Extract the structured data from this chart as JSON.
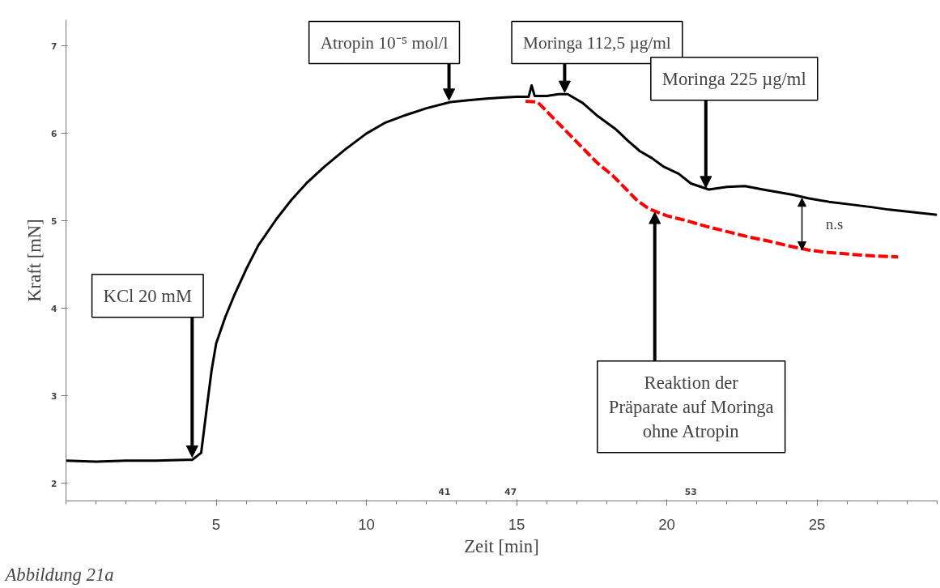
{
  "chart_data": {
    "type": "line",
    "xlabel": "Zeit [min]",
    "ylabel": "Kraft [mN]",
    "xlim": [
      0,
      29
    ],
    "ylim": [
      1.8,
      7.3
    ],
    "xticks": [
      5,
      10,
      15,
      20,
      25
    ],
    "yticks": [
      2,
      3,
      4,
      5,
      6,
      7
    ],
    "grid": false,
    "marker": "none",
    "series": [
      {
        "color": "#000000",
        "line_style": "solid",
        "x": [
          0,
          1,
          2,
          3,
          4,
          4.2,
          4.5,
          4.7,
          4.85,
          5,
          5.3,
          5.6,
          6,
          6.4,
          7,
          7.5,
          8,
          8.6,
          9.3,
          10,
          10.6,
          11.3,
          12,
          12.8,
          13.4,
          14,
          14.5,
          15,
          15.4,
          15.5,
          15.6,
          16,
          16.4,
          16.7,
          17.2,
          17.7,
          18.3,
          18.7,
          19.1,
          19.5,
          19.9,
          20.4,
          20.8,
          21.4,
          22,
          22.6,
          23.2,
          23.7,
          24.2,
          24.7,
          25.4,
          26.1,
          26.8,
          27.4,
          28.2,
          29
        ],
        "values": [
          2.26,
          2.25,
          2.26,
          2.26,
          2.27,
          2.27,
          2.35,
          2.9,
          3.3,
          3.6,
          3.9,
          4.15,
          4.45,
          4.72,
          5.02,
          5.24,
          5.43,
          5.62,
          5.82,
          6.0,
          6.12,
          6.21,
          6.29,
          6.36,
          6.38,
          6.4,
          6.41,
          6.42,
          6.42,
          6.55,
          6.43,
          6.43,
          6.45,
          6.45,
          6.35,
          6.2,
          6.05,
          5.92,
          5.8,
          5.72,
          5.62,
          5.54,
          5.43,
          5.36,
          5.39,
          5.4,
          5.36,
          5.33,
          5.3,
          5.26,
          5.22,
          5.19,
          5.16,
          5.13,
          5.1,
          5.07
        ]
      },
      {
        "color": "#ff0000",
        "line_style": "dashed",
        "x": [
          15.3,
          15.7,
          16.1,
          16.5,
          16.9,
          17.3,
          17.7,
          18.2,
          18.6,
          19,
          19.4,
          20,
          20.7,
          21.3,
          22,
          22.7,
          23.4,
          24,
          24.7,
          25.4,
          26.1,
          26.9,
          27.7
        ],
        "values": [
          6.37,
          6.36,
          6.22,
          6.08,
          5.94,
          5.8,
          5.66,
          5.52,
          5.38,
          5.24,
          5.14,
          5.06,
          5.0,
          4.94,
          4.88,
          4.82,
          4.77,
          4.72,
          4.67,
          4.64,
          4.62,
          4.6,
          4.59
        ]
      }
    ],
    "annotations": [
      {
        "text": "KCl 20 mM",
        "x": 4.2,
        "y": 2.3
      },
      {
        "text": "Atropin 10⁻⁵ mol/l",
        "x": 12.75,
        "y": 6.38
      },
      {
        "text": "Moringa 112,5 µg/ml",
        "x": 16.6,
        "y": 6.47
      },
      {
        "text": "Moringa 225 µg/ml",
        "x": 21.3,
        "y": 5.38
      },
      {
        "text": "Reaktion der Präparate auf Moringa ohne Atropin",
        "x": 19.6,
        "y": 5.1
      },
      "n.s",
      "41",
      "47",
      "53",
      "Abbildung 21a"
    ]
  }
}
